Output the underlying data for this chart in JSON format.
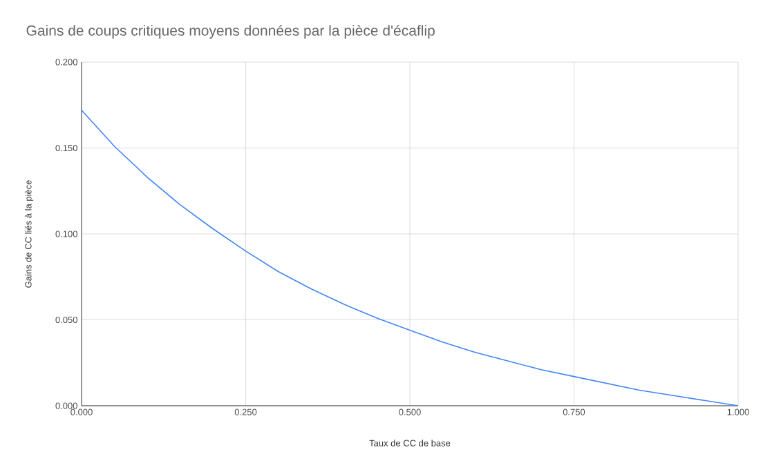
{
  "chart_data": {
    "type": "line",
    "title": "Gains de coups critiques moyens données par la pièce d'écaflip",
    "xlabel": "Taux de CC de base",
    "ylabel": "Gains de CC liés à la pièce",
    "x": [
      0,
      0.05,
      0.1,
      0.15,
      0.2,
      0.25,
      0.3,
      0.35,
      0.4,
      0.45,
      0.5,
      0.55,
      0.6,
      0.65,
      0.7,
      0.75,
      0.8,
      0.85,
      0.9,
      0.95,
      1
    ],
    "series": [
      {
        "color": "#4285f4",
        "values": [
          0.172,
          0.151,
          0.133,
          0.117,
          0.103,
          0.09,
          0.078,
          0.068,
          0.059,
          0.051,
          0.044,
          0.037,
          0.031,
          0.026,
          0.021,
          0.017,
          0.013,
          0.009,
          0.006,
          0.003,
          0
        ]
      }
    ],
    "xlim": [
      0,
      1
    ],
    "ylim": [
      0,
      0.2
    ],
    "xticks": [
      {
        "value": 0,
        "label": "0.000"
      },
      {
        "value": 0.25,
        "label": "0.250"
      },
      {
        "value": 0.5,
        "label": "0.500"
      },
      {
        "value": 0.75,
        "label": "0.750"
      },
      {
        "value": 1,
        "label": "1.000"
      }
    ],
    "yticks": [
      {
        "value": 0,
        "label": "0.000"
      },
      {
        "value": 0.05,
        "label": "0.050"
      },
      {
        "value": 0.1,
        "label": "0.100"
      },
      {
        "value": 0.15,
        "label": "0.150"
      },
      {
        "value": 0.2,
        "label": "0.200"
      }
    ],
    "grid": true,
    "marker": "none",
    "line_style": "solid"
  }
}
